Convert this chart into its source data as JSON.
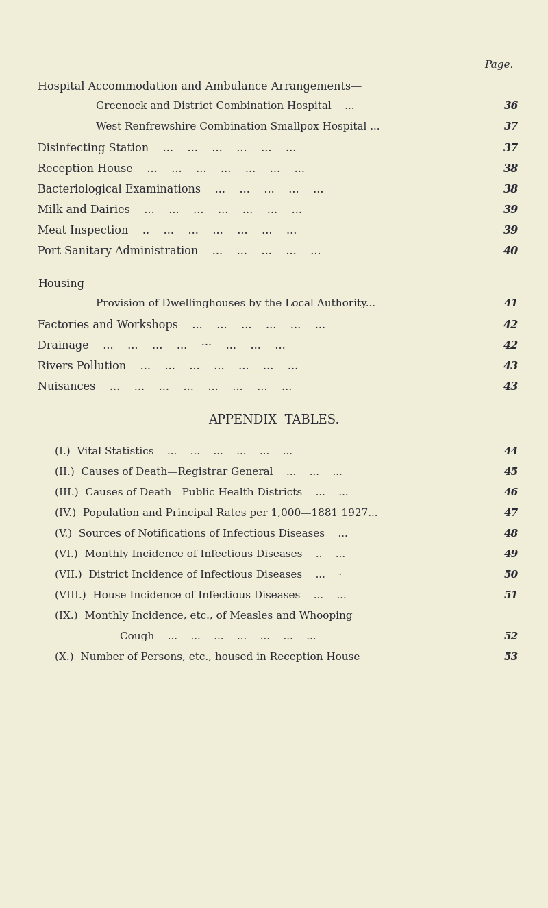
{
  "background_color": "#f0edd8",
  "text_color": "#2a2a35",
  "page_label": "Page.",
  "figsize": [
    8.0,
    13.25
  ],
  "dpi": 100,
  "entries": [
    {
      "text": "Hospital Accommodation and Ambulance Arrangements—",
      "indent": 55,
      "page": null,
      "style": "smallcaps",
      "size": 11.5
    },
    {
      "text": "Greenock and District Combination Hospital    ...",
      "indent": 140,
      "page": "36",
      "style": "normal",
      "size": 11.0
    },
    {
      "text": "West Renfrewshire Combination Smallpox Hospital ...",
      "indent": 140,
      "page": "37",
      "style": "normal",
      "size": 11.0
    },
    {
      "text": "Disinfecting Station    ...    ...    ...    ...    ...    ...",
      "indent": 55,
      "page": "37",
      "style": "smallcaps",
      "size": 11.5
    },
    {
      "text": "Reception House    ...    ...    ...    ...    ...    ...    ...",
      "indent": 55,
      "page": "38",
      "style": "smallcaps",
      "size": 11.5
    },
    {
      "text": "Bacteriological Examinations    ...    ...    ...    ...    ...",
      "indent": 55,
      "page": "38",
      "style": "smallcaps",
      "size": 11.5
    },
    {
      "text": "Milk and Dairies    ...    ...    ...    ...    ...    ...    ...",
      "indent": 55,
      "page": "39",
      "style": "smallcaps",
      "size": 11.5
    },
    {
      "text": "Meat Inspection    ..    ...    ...    ...    ...    ...    ...",
      "indent": 55,
      "page": "39",
      "style": "smallcaps",
      "size": 11.5
    },
    {
      "text": "Port Sanitary Administration    ...    ...    ...    ...    ...",
      "indent": 55,
      "page": "40",
      "style": "smallcaps",
      "size": 11.5
    },
    {
      "text": "",
      "indent": 0,
      "page": null,
      "style": "blank",
      "size": 11.0
    },
    {
      "text": "Housing—",
      "indent": 55,
      "page": null,
      "style": "smallcaps",
      "size": 11.5
    },
    {
      "text": "Provision of Dwellinghouses by the Local Authority...",
      "indent": 140,
      "page": "41",
      "style": "normal",
      "size": 11.0
    },
    {
      "text": "Factories and Workshops    ...    ...    ...    ...    ...    ...",
      "indent": 55,
      "page": "42",
      "style": "smallcaps",
      "size": 11.5
    },
    {
      "text": "Drainage    ...    ...    ...    ...    ···    ...    ...    ...",
      "indent": 55,
      "page": "42",
      "style": "smallcaps",
      "size": 11.5
    },
    {
      "text": "Rivers Pollution    ...    ...    ...    ...    ...    ...    ...",
      "indent": 55,
      "page": "43",
      "style": "smallcaps",
      "size": 11.5
    },
    {
      "text": "Nuisances    ...    ...    ...    ...    ...    ...    ...    ...",
      "indent": 55,
      "page": "43",
      "style": "smallcaps",
      "size": 11.5
    },
    {
      "text": "",
      "indent": 0,
      "page": null,
      "style": "blank",
      "size": 11.0
    },
    {
      "text": "APPENDIX  TABLES.",
      "indent": 0,
      "page": null,
      "style": "center",
      "size": 13.0
    },
    {
      "text": "",
      "indent": 0,
      "page": null,
      "style": "blank",
      "size": 11.0
    },
    {
      "text": "(I.)  Vital Statistics    ...    ...    ...    ...    ...    ...",
      "indent": 80,
      "page": "44",
      "style": "normal",
      "size": 11.0
    },
    {
      "text": "(II.)  Causes of Death—Registrar General    ...    ...    ...",
      "indent": 80,
      "page": "45",
      "style": "normal",
      "size": 11.0
    },
    {
      "text": "(III.)  Causes of Death—Public Health Districts    ...    ...",
      "indent": 80,
      "page": "46",
      "style": "normal",
      "size": 11.0
    },
    {
      "text": "(IV.)  Population and Principal Rates per 1,000—1881-1927...",
      "indent": 80,
      "page": "47",
      "style": "normal",
      "size": 11.0
    },
    {
      "text": "(V.)  Sources of Notifications of Infectious Diseases    ...",
      "indent": 80,
      "page": "48",
      "style": "normal",
      "size": 11.0
    },
    {
      "text": "(VI.)  Monthly Incidence of Infectious Diseases    ..    ...",
      "indent": 80,
      "page": "49",
      "style": "normal",
      "size": 11.0
    },
    {
      "text": "(VII.)  District Incidence of Infectious Diseases    ...    ·",
      "indent": 80,
      "page": "50",
      "style": "normal",
      "size": 11.0
    },
    {
      "text": "(VIII.)  House Incidence of Infectious Diseases    ...    ...",
      "indent": 80,
      "page": "51",
      "style": "normal",
      "size": 11.0
    },
    {
      "text": "(IX.)  Monthly Incidence, etc., of Measles and Whooping",
      "indent": 80,
      "page": null,
      "style": "normal",
      "size": 11.0
    },
    {
      "text": "Cough    ...    ...    ...    ...    ...    ...    ...",
      "indent": 175,
      "page": "52",
      "style": "normal",
      "size": 11.0
    },
    {
      "text": "(X.)  Number of Persons, etc., housed in Reception House",
      "indent": 80,
      "page": "53",
      "style": "normal",
      "size": 11.0
    }
  ]
}
